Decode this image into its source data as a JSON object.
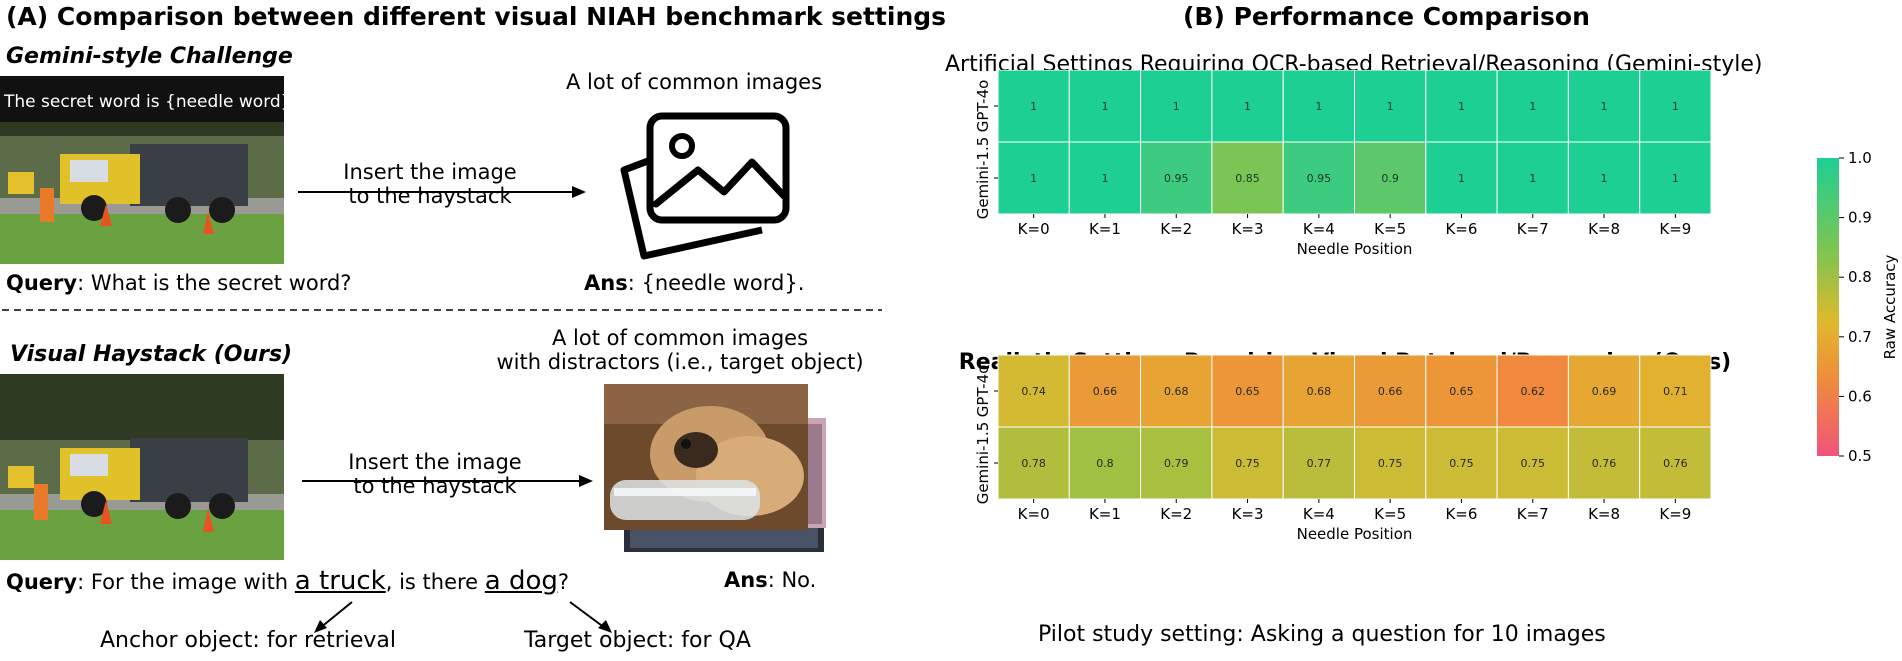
{
  "panel_a": {
    "title": "(A) Comparison between different visual NIAH benchmark settings",
    "gemini": {
      "section": "Gemini-style Challenge",
      "overlay": "The secret word is {needle word}.",
      "haystack_label": "A lot of common images",
      "insert_line1": "Insert the image",
      "insert_line2": "to the haystack",
      "query_bold": "Query",
      "query_text": ": What is the secret word?",
      "ans_bold": "Ans",
      "ans_text": ": {needle word}."
    },
    "ours": {
      "section": "Visual Haystack (Ours)",
      "haystack_line1": "A lot of common images",
      "haystack_line2": "with distractors (i.e., target object)",
      "insert_line1": "Insert the image",
      "insert_line2": "to the haystack",
      "query_bold": "Query",
      "query_pre": ": For the image with ",
      "anchor_word": "a truck",
      "query_mid": ", is there ",
      "target_word": "a dog",
      "query_end": "?",
      "ans_bold": "Ans",
      "ans_text": ": No.",
      "anchor_caption": "Anchor object: for retrieval",
      "target_caption": "Target object: for QA"
    }
  },
  "panel_b": {
    "title": "(B) Performance Comparison",
    "footer": "Pilot study setting: Asking a question for 10 images"
  },
  "colors": {
    "high": "#1ecf94",
    "mid": "#d9b52e",
    "low": "#f0547a"
  },
  "chart_data": [
    {
      "type": "heatmap",
      "title": "Artificial Settings Requiring OCR-based Retrieval/Reasoning (Gemini-style)",
      "xlabel": "Needle Position",
      "ylabel": "",
      "x": [
        "K=0",
        "K=1",
        "K=2",
        "K=3",
        "K=4",
        "K=5",
        "K=6",
        "K=7",
        "K=8",
        "K=9"
      ],
      "y": [
        "GPT-4o",
        "Gemini-1.5"
      ],
      "values": [
        [
          1,
          1,
          1,
          1,
          1,
          1,
          1,
          1,
          1,
          1
        ],
        [
          1,
          1,
          0.95,
          0.85,
          0.95,
          0.9,
          1,
          1,
          1,
          1
        ]
      ],
      "labels": [
        [
          "1",
          "1",
          "1",
          "1",
          "1",
          "1",
          "1",
          "1",
          "1",
          "1"
        ],
        [
          "1",
          "1",
          "0.95",
          "0.85",
          "0.95",
          "0.9",
          "1",
          "1",
          "1",
          "1"
        ]
      ]
    },
    {
      "type": "heatmap",
      "title": "Realistic Settings Requiring Visual Retrieval/Reasoning (Ours)",
      "xlabel": "Needle Position",
      "ylabel": "",
      "x": [
        "K=0",
        "K=1",
        "K=2",
        "K=3",
        "K=4",
        "K=5",
        "K=6",
        "K=7",
        "K=8",
        "K=9"
      ],
      "y": [
        "GPT-4o",
        "Gemini-1.5"
      ],
      "values": [
        [
          0.74,
          0.66,
          0.68,
          0.65,
          0.68,
          0.66,
          0.65,
          0.62,
          0.69,
          0.71
        ],
        [
          0.78,
          0.8,
          0.79,
          0.75,
          0.77,
          0.75,
          0.75,
          0.75,
          0.76,
          0.76
        ]
      ],
      "labels": [
        [
          "0.74",
          "0.66",
          "0.68",
          "0.65",
          "0.68",
          "0.66",
          "0.65",
          "0.62",
          "0.69",
          "0.71"
        ],
        [
          "0.78",
          "0.8",
          "0.79",
          "0.75",
          "0.77",
          "0.75",
          "0.75",
          "0.75",
          "0.76",
          "0.76"
        ]
      ]
    }
  ],
  "colorbar": {
    "label": "Raw Accuracy",
    "ticks": [
      "1.0",
      "0.9",
      "0.8",
      "0.7",
      "0.6",
      "0.5"
    ],
    "range": [
      0.5,
      1.0
    ]
  }
}
